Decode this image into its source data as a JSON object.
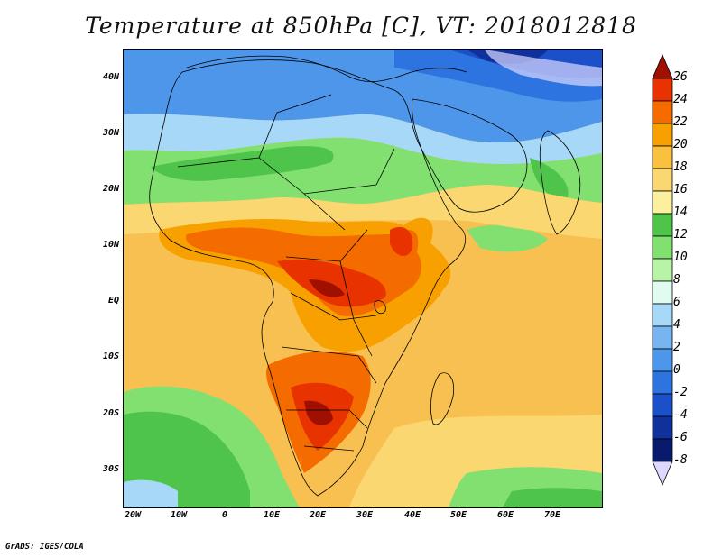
{
  "title": "Temperature at 850hPa [C], VT: 2018012818",
  "credit": "GrADS: IGES/COLA",
  "lat_labels": [
    "40N",
    "30N",
    "20N",
    "10N",
    "EQ",
    "10S",
    "20S",
    "30S"
  ],
  "lon_labels": [
    "20W",
    "10W",
    "0",
    "10E",
    "20E",
    "30E",
    "40E",
    "50E",
    "60E",
    "70E"
  ],
  "colorbar": {
    "levels": [
      "26",
      "24",
      "22",
      "20",
      "18",
      "16",
      "14",
      "12",
      "10",
      "8",
      "6",
      "4",
      "2",
      "0",
      "-2",
      "-4",
      "-6",
      "-8"
    ],
    "colors": [
      "#a01000",
      "#e83200",
      "#f46c00",
      "#f7a000",
      "#fac040",
      "#fad770",
      "#fbf0a0",
      "#4ec44a",
      "#82e070",
      "#b8f4a8",
      "#e0fcf0",
      "#a8d8f8",
      "#78b4f0",
      "#4e96ea",
      "#2e74e0",
      "#1c50c8",
      "#10309c",
      "#081a6c",
      "#dcd8ff"
    ]
  }
}
